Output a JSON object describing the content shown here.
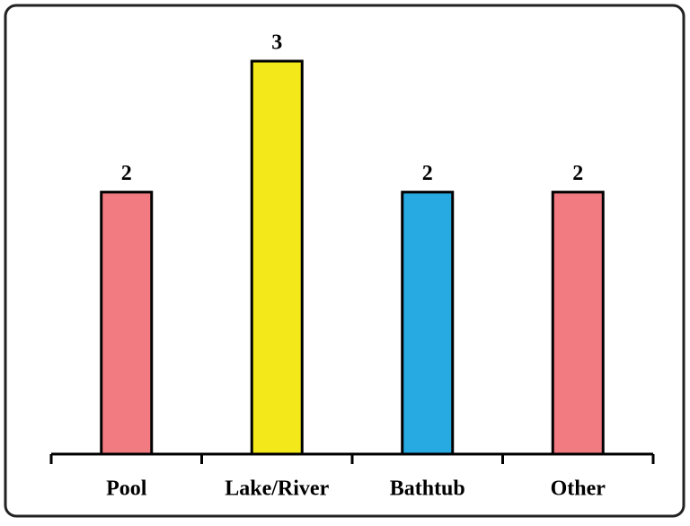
{
  "chart_data": {
    "type": "bar",
    "categories": [
      "Pool",
      "Lake/River",
      "Bathtub",
      "Other"
    ],
    "values": [
      2,
      3,
      2,
      2
    ],
    "colors": [
      "#f27b82",
      "#f2e81a",
      "#27aae1",
      "#f27b82"
    ],
    "ylim": [
      0,
      3
    ]
  }
}
